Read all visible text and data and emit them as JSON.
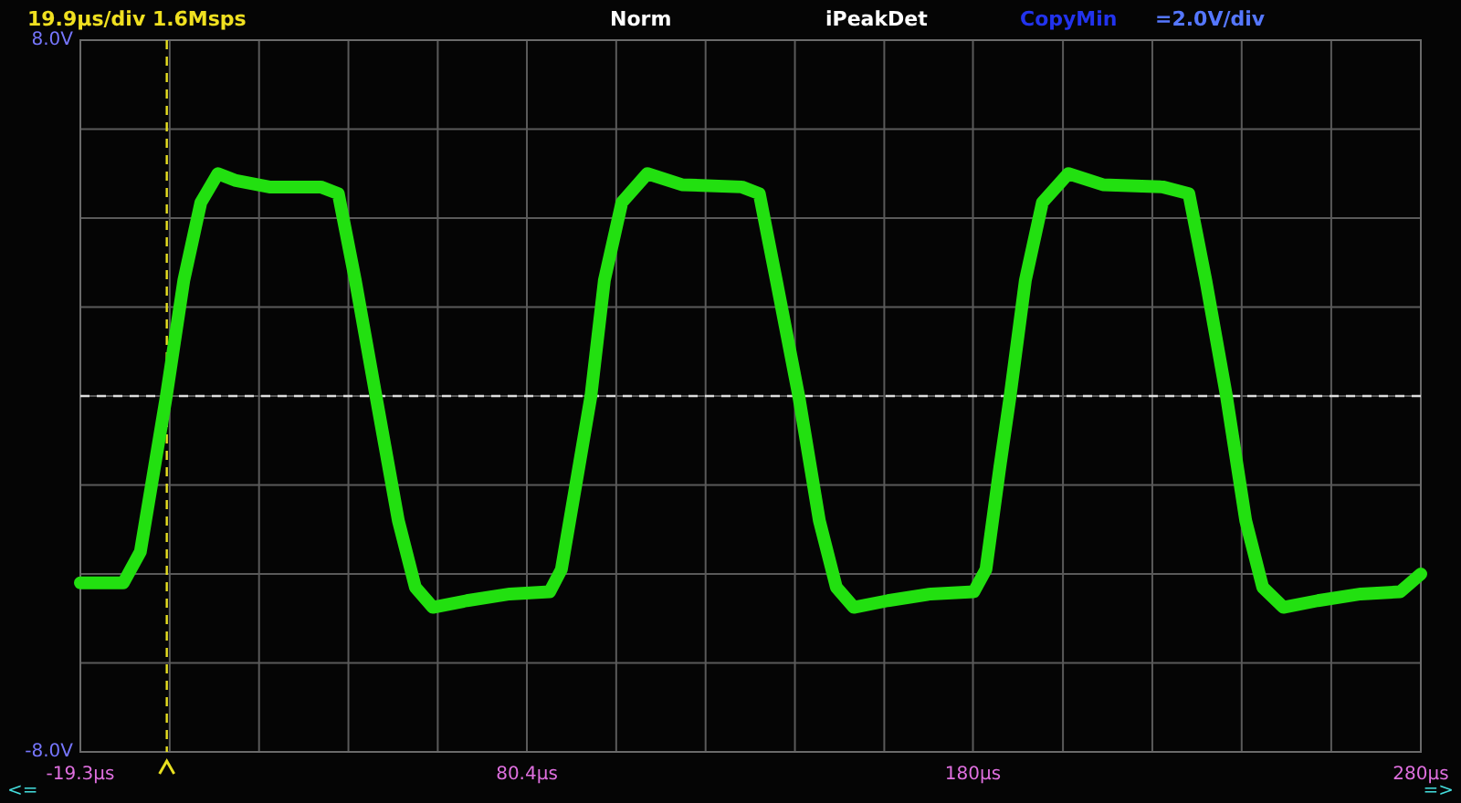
{
  "chart_data": {
    "type": "line",
    "annotations": [
      "19.9µs/div  1.6Msps",
      "Norm",
      "iPeakDet",
      "CopyMin",
      "=2.0V/div",
      "<=",
      "=>"
    ],
    "xlim": [
      -19.3,
      280
    ],
    "xticks": [
      {
        "value": -19.3,
        "label": "-19.3µs"
      },
      {
        "value": 0.65,
        "label": null
      },
      {
        "value": 20.6,
        "label": null
      },
      {
        "value": 40.55,
        "label": null
      },
      {
        "value": 60.5,
        "label": null
      },
      {
        "value": 80.4,
        "label": "80.4µs"
      },
      {
        "value": 100.35,
        "label": null
      },
      {
        "value": 120.3,
        "label": null
      },
      {
        "value": 140.25,
        "label": null
      },
      {
        "value": 160.2,
        "label": null
      },
      {
        "value": 180,
        "label": "180µs"
      },
      {
        "value": 200.1,
        "label": null
      },
      {
        "value": 220.05,
        "label": null
      },
      {
        "value": 240,
        "label": null
      },
      {
        "value": 260,
        "label": null
      },
      {
        "value": 280,
        "label": "280µs"
      }
    ],
    "ylim": [
      -8,
      8
    ],
    "yticks": [
      {
        "value": -8,
        "label": "-8.0V"
      },
      {
        "value": -6,
        "label": null
      },
      {
        "value": -4,
        "label": null
      },
      {
        "value": -2,
        "label": null
      },
      {
        "value": 0,
        "label": null
      },
      {
        "value": 2,
        "label": null
      },
      {
        "value": 4,
        "label": null
      },
      {
        "value": 6,
        "label": null
      },
      {
        "value": 8,
        "label": "8.0V"
      }
    ],
    "grid": true,
    "line_style": "solid",
    "ref_lines": [
      {
        "axis": "x",
        "value": 0,
        "label": null,
        "color": "#e8e020",
        "line_style": "dashed"
      },
      {
        "axis": "y",
        "value": 0,
        "label": null,
        "color": "#dddddd",
        "line_style": "dashed"
      }
    ],
    "series": [
      {
        "color": "#22e010",
        "x": [
          -19.3,
          -9.7,
          -5.9,
          -0.1,
          3.8,
          7.6,
          11.4,
          15.2,
          22.9,
          34.4,
          38.3,
          42.1,
          46.7,
          51.7,
          55.5,
          59.4,
          67.0,
          76.6,
          85.5,
          88.1,
          92.0,
          94.7,
          97.7,
          101.6,
          107.3,
          115.0,
          128.4,
          132.3,
          136.1,
          141.1,
          145.7,
          149.5,
          153.4,
          161.0,
          170.6,
          180.2,
          182.9,
          186.0,
          188.3,
          191.7,
          195.5,
          201.3,
          209.0,
          222.4,
          228.2,
          232.0,
          236.6,
          240.9,
          244.7,
          249.3,
          257.0,
          266.6,
          275.4,
          280
        ],
        "values": [
          -4.2,
          -4.2,
          -3.5,
          0,
          2.6,
          4.35,
          5.0,
          4.85,
          4.7,
          4.7,
          4.55,
          2.6,
          0,
          -2.8,
          -4.3,
          -4.75,
          -4.6,
          -4.45,
          -4.4,
          -3.9,
          -1.6,
          0,
          2.6,
          4.35,
          5.0,
          4.75,
          4.7,
          4.55,
          2.6,
          0,
          -2.8,
          -4.3,
          -4.75,
          -4.6,
          -4.45,
          -4.4,
          -3.9,
          -1.6,
          0,
          2.6,
          4.35,
          5.0,
          4.75,
          4.7,
          4.55,
          2.6,
          0,
          -2.8,
          -4.3,
          -4.75,
          -4.6,
          -4.45,
          -4.4,
          -4.0
        ]
      }
    ]
  }
}
